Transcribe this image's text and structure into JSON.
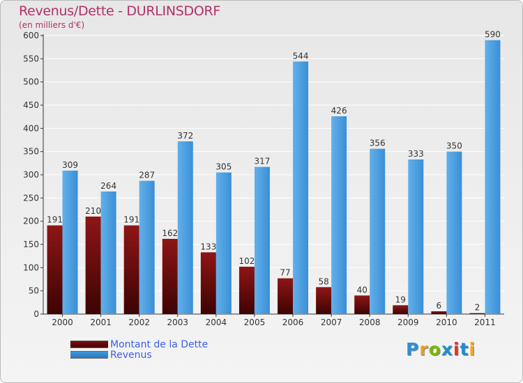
{
  "title": "Revenus/Dette - DURLINSDORF",
  "subtitle": "(en milliers d'€)",
  "logo": {
    "text": "Proxiti",
    "letter_colors": [
      "#2d8fd8",
      "#e8a020",
      "#7ab800",
      "#1f8fd0",
      "#d8382a",
      "#1e8ad8",
      "#f0a81e"
    ]
  },
  "chart_data": {
    "type": "bar",
    "categories": [
      "2000",
      "2001",
      "2002",
      "2003",
      "2004",
      "2005",
      "2006",
      "2007",
      "2008",
      "2009",
      "2010",
      "2011"
    ],
    "series": [
      {
        "name": "Montant de la Dette",
        "color": "#7a0c0c",
        "values": [
          191,
          210,
          191,
          162,
          133,
          102,
          77,
          58,
          40,
          19,
          6,
          2
        ]
      },
      {
        "name": "Revenus",
        "color": "#3f97dc",
        "values": [
          309,
          264,
          287,
          372,
          305,
          317,
          544,
          426,
          356,
          333,
          350,
          590
        ]
      }
    ],
    "yticks": [
      0,
      50,
      100,
      150,
      200,
      250,
      300,
      350,
      400,
      450,
      500,
      550,
      600
    ],
    "ylim": [
      0,
      600
    ],
    "grid": "horizontal",
    "legend_position": "bottom-left"
  }
}
